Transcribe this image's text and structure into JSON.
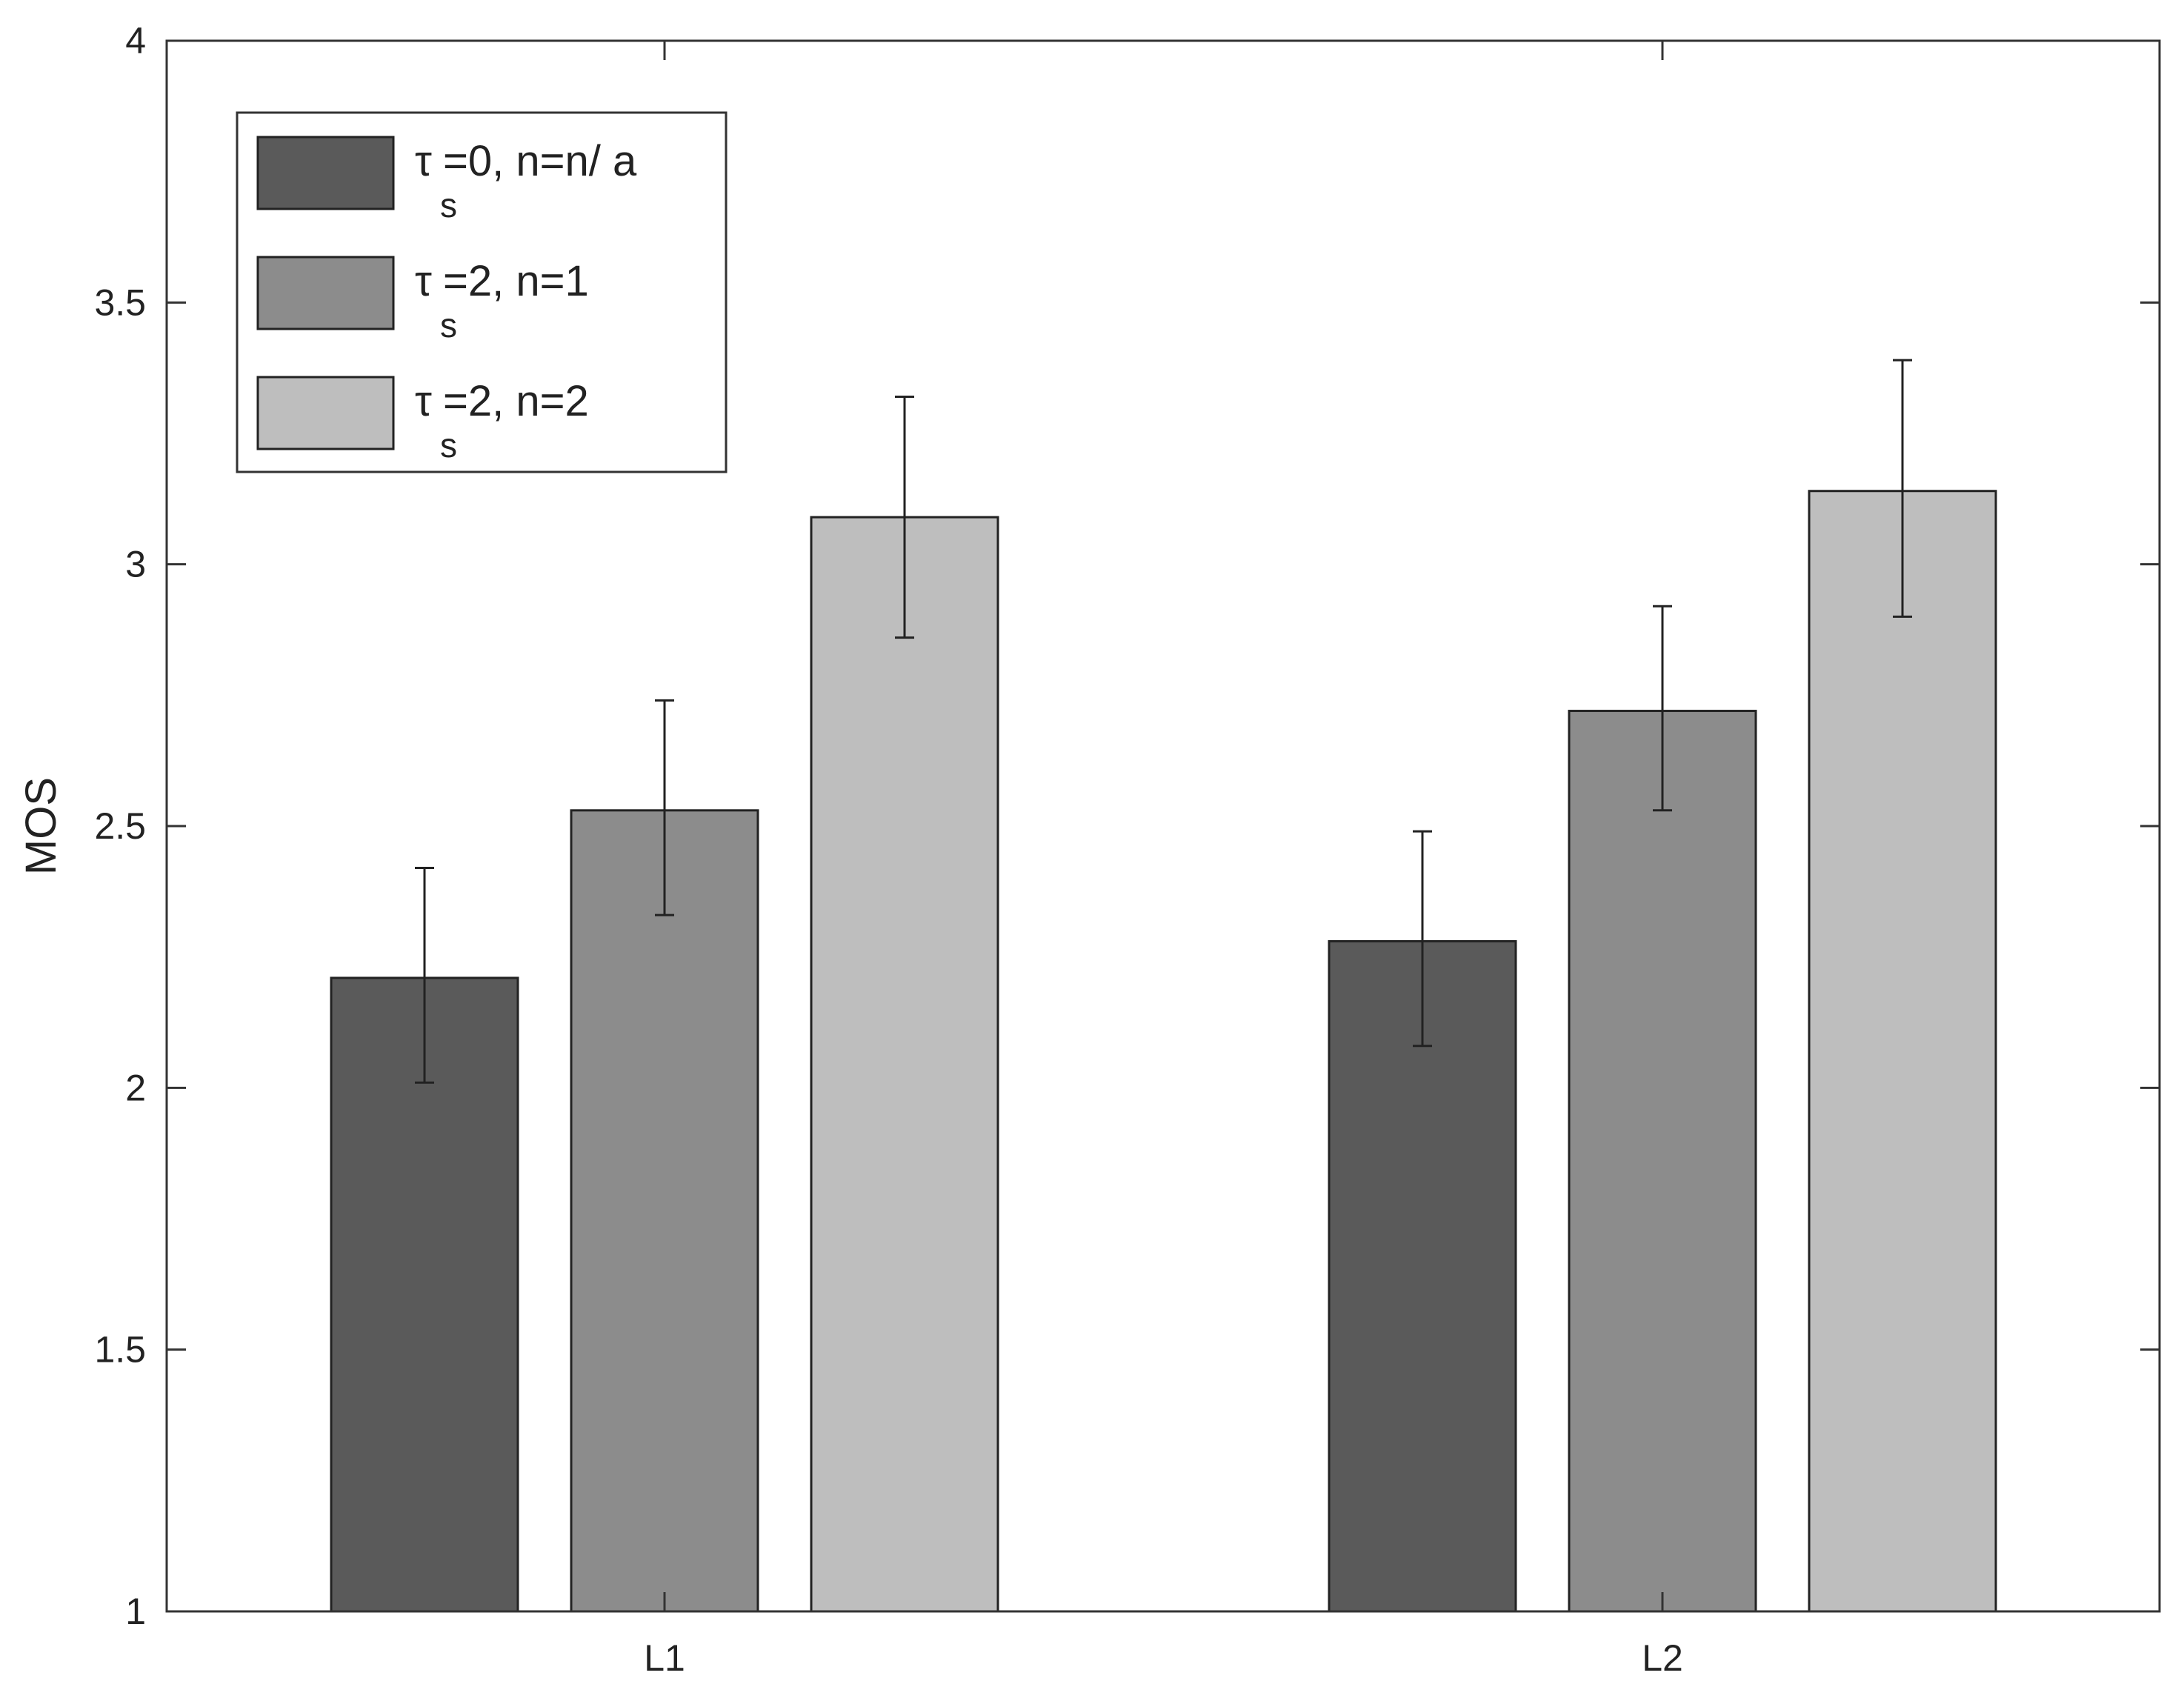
{
  "chart_data": {
    "type": "bar",
    "title": "",
    "xlabel": "",
    "ylabel": "MOS",
    "ylim": [
      1,
      4
    ],
    "yticks": [
      "1",
      "1.5",
      "2",
      "2.5",
      "3",
      "3.5",
      "4"
    ],
    "categories": [
      "L1",
      "L2"
    ],
    "grid": false,
    "legend_position": "top-left",
    "series": [
      {
        "name": "τs=0, n=n/ a",
        "legend": {
          "symbol": "τ",
          "sub": "s",
          "rest": "=0, n=n/ a"
        },
        "color": "#5a5a5a",
        "values": [
          2.21,
          2.28
        ],
        "error_low": [
          2.01,
          2.08
        ],
        "error_high": [
          2.42,
          2.49
        ]
      },
      {
        "name": "τs=2, n=1",
        "legend": {
          "symbol": "τ",
          "sub": "s",
          "rest": "=2, n=1"
        },
        "color": "#8c8c8c",
        "values": [
          2.53,
          2.72
        ],
        "error_low": [
          2.33,
          2.53
        ],
        "error_high": [
          2.74,
          2.92
        ]
      },
      {
        "name": "τs=2, n=2",
        "legend": {
          "symbol": "τ",
          "sub": "s",
          "rest": "=2, n=2"
        },
        "color": "#bebebe",
        "values": [
          3.09,
          3.14
        ],
        "error_low": [
          2.86,
          2.9
        ],
        "error_high": [
          3.32,
          3.39
        ]
      }
    ]
  }
}
